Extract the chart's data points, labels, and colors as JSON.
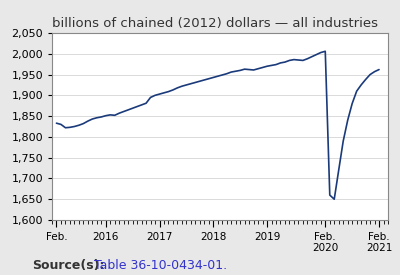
{
  "title": "billions of chained (2012) dollars — all industries",
  "title_fontsize": 9.5,
  "line_color": "#1a3a7a",
  "background_color": "#e8e8e8",
  "plot_background": "#ffffff",
  "ylim": [
    1600,
    2050
  ],
  "yticks": [
    1600,
    1650,
    1700,
    1750,
    1800,
    1850,
    1900,
    1950,
    2000,
    2050
  ],
  "ylabel_fontsize": 8,
  "source_bold": "Source(s):",
  "source_link": "Table 36-10-0434-01.",
  "source_fontsize": 9,
  "xlim": [
    2015.0,
    2021.25
  ],
  "xtick_positions": [
    2015.083,
    2016.0,
    2017.0,
    2018.0,
    2019.0,
    2020.083,
    2021.083
  ],
  "xtick_labels": [
    "Feb.",
    "2016",
    "2017",
    "2018",
    "2019",
    "Feb.\n2020",
    "Feb.\n2021"
  ],
  "data_x": [
    2015.083,
    2015.167,
    2015.25,
    2015.333,
    2015.417,
    2015.5,
    2015.583,
    2015.667,
    2015.75,
    2015.833,
    2015.917,
    2016.0,
    2016.083,
    2016.167,
    2016.25,
    2016.333,
    2016.417,
    2016.5,
    2016.583,
    2016.667,
    2016.75,
    2016.833,
    2016.917,
    2017.0,
    2017.083,
    2017.167,
    2017.25,
    2017.333,
    2017.417,
    2017.5,
    2017.583,
    2017.667,
    2017.75,
    2017.833,
    2017.917,
    2018.0,
    2018.083,
    2018.167,
    2018.25,
    2018.333,
    2018.417,
    2018.5,
    2018.583,
    2018.667,
    2018.75,
    2018.833,
    2018.917,
    2019.0,
    2019.083,
    2019.167,
    2019.25,
    2019.333,
    2019.417,
    2019.5,
    2019.583,
    2019.667,
    2019.75,
    2019.833,
    2019.917,
    2020.0,
    2020.083,
    2020.167,
    2020.25,
    2020.333,
    2020.417,
    2020.5,
    2020.583,
    2020.667,
    2020.75,
    2020.833,
    2020.917,
    2021.0,
    2021.083
  ],
  "data_y": [
    1833,
    1830,
    1822,
    1823,
    1825,
    1828,
    1832,
    1838,
    1843,
    1846,
    1848,
    1851,
    1853,
    1852,
    1857,
    1861,
    1865,
    1869,
    1873,
    1877,
    1881,
    1895,
    1900,
    1903,
    1906,
    1909,
    1913,
    1918,
    1922,
    1925,
    1928,
    1931,
    1934,
    1937,
    1940,
    1943,
    1946,
    1949,
    1952,
    1956,
    1958,
    1960,
    1963,
    1962,
    1961,
    1964,
    1967,
    1970,
    1972,
    1974,
    1978,
    1980,
    1984,
    1986,
    1985,
    1984,
    1988,
    1993,
    1998,
    2003,
    2006,
    1660,
    1650,
    1720,
    1790,
    1840,
    1880,
    1910,
    1925,
    1938,
    1950,
    1957,
    1962
  ]
}
